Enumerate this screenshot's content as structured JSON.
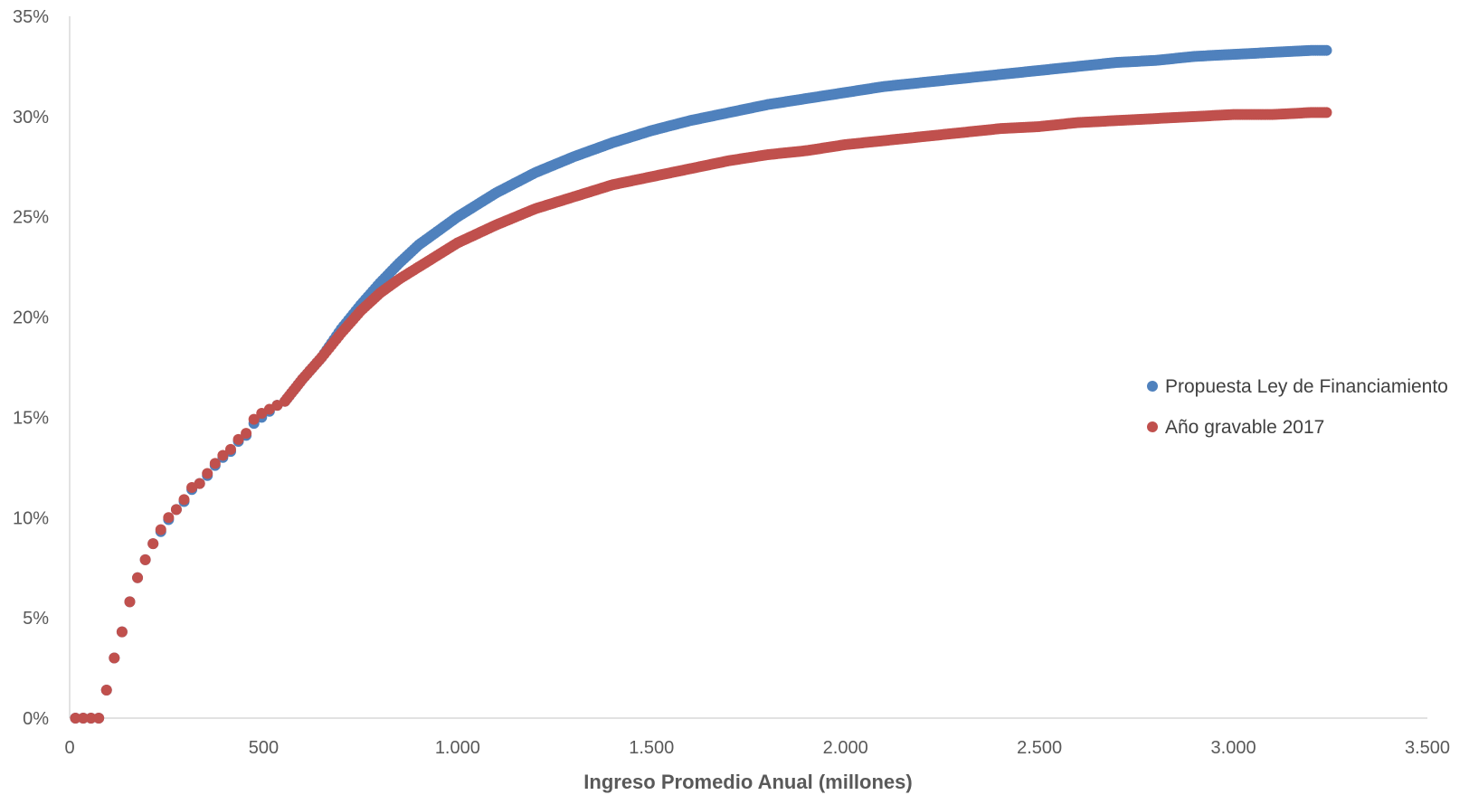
{
  "chart_data": {
    "type": "scatter",
    "title": "",
    "xlabel": "Ingreso Promedio Anual (millones)",
    "ylabel": "",
    "xlim": [
      0,
      3500
    ],
    "ylim": [
      0,
      35
    ],
    "x_ticks": [
      0,
      500,
      1000,
      1500,
      2000,
      2500,
      3000,
      3500
    ],
    "x_tick_labels": [
      "0",
      "500",
      "1.000",
      "1.500",
      "2.000",
      "2.500",
      "3.000",
      "3.500"
    ],
    "y_ticks": [
      0,
      5,
      10,
      15,
      20,
      25,
      30,
      35
    ],
    "y_tick_labels": [
      "0%",
      "5%",
      "10%",
      "15%",
      "20%",
      "25%",
      "30%",
      "35%"
    ],
    "grid": false,
    "legend_position": "right",
    "series": [
      {
        "name": "Propuesta Ley de Financiamiento",
        "color": "#4F81BD",
        "x": [
          15,
          35,
          55,
          75,
          95,
          115,
          135,
          155,
          175,
          195,
          215,
          235,
          255,
          275,
          295,
          315,
          335,
          355,
          375,
          395,
          415,
          435,
          455,
          475,
          495,
          515,
          535,
          555,
          600,
          650,
          700,
          750,
          800,
          850,
          900,
          1000,
          1100,
          1200,
          1300,
          1400,
          1500,
          1600,
          1700,
          1800,
          1900,
          2000,
          2100,
          2200,
          2300,
          2400,
          2500,
          2600,
          2700,
          2800,
          2900,
          3000,
          3100,
          3200,
          3240
        ],
        "y": [
          0,
          0,
          0,
          0,
          1.4,
          3.0,
          4.3,
          5.8,
          7.0,
          7.9,
          8.7,
          9.3,
          9.9,
          10.4,
          10.8,
          11.4,
          11.7,
          12.1,
          12.6,
          13.0,
          13.3,
          13.8,
          14.1,
          14.7,
          15.0,
          15.3,
          15.6,
          15.8,
          16.9,
          18.0,
          19.4,
          20.6,
          21.7,
          22.7,
          23.6,
          25.0,
          26.2,
          27.2,
          28.0,
          28.7,
          29.3,
          29.8,
          30.2,
          30.6,
          30.9,
          31.2,
          31.5,
          31.7,
          31.9,
          32.1,
          32.3,
          32.5,
          32.7,
          32.8,
          33.0,
          33.1,
          33.2,
          33.3,
          33.3
        ]
      },
      {
        "name": "Año gravable 2017",
        "color": "#C0504D",
        "x": [
          15,
          35,
          55,
          75,
          95,
          115,
          135,
          155,
          175,
          195,
          215,
          235,
          255,
          275,
          295,
          315,
          335,
          355,
          375,
          395,
          415,
          435,
          455,
          475,
          495,
          515,
          535,
          555,
          600,
          650,
          700,
          750,
          800,
          850,
          900,
          1000,
          1100,
          1200,
          1300,
          1400,
          1500,
          1600,
          1700,
          1800,
          1900,
          2000,
          2100,
          2200,
          2300,
          2400,
          2500,
          2600,
          2700,
          2800,
          2900,
          3000,
          3100,
          3200,
          3240
        ],
        "y": [
          0,
          0,
          0,
          0,
          1.4,
          3.0,
          4.3,
          5.8,
          7.0,
          7.9,
          8.7,
          9.4,
          10.0,
          10.4,
          10.9,
          11.5,
          11.7,
          12.2,
          12.7,
          13.1,
          13.4,
          13.9,
          14.2,
          14.9,
          15.2,
          15.4,
          15.6,
          15.8,
          16.9,
          18.0,
          19.2,
          20.3,
          21.2,
          21.9,
          22.5,
          23.7,
          24.6,
          25.4,
          26.0,
          26.6,
          27.0,
          27.4,
          27.8,
          28.1,
          28.3,
          28.6,
          28.8,
          29.0,
          29.2,
          29.4,
          29.5,
          29.7,
          29.8,
          29.9,
          30.0,
          30.1,
          30.1,
          30.2,
          30.2
        ]
      }
    ]
  }
}
